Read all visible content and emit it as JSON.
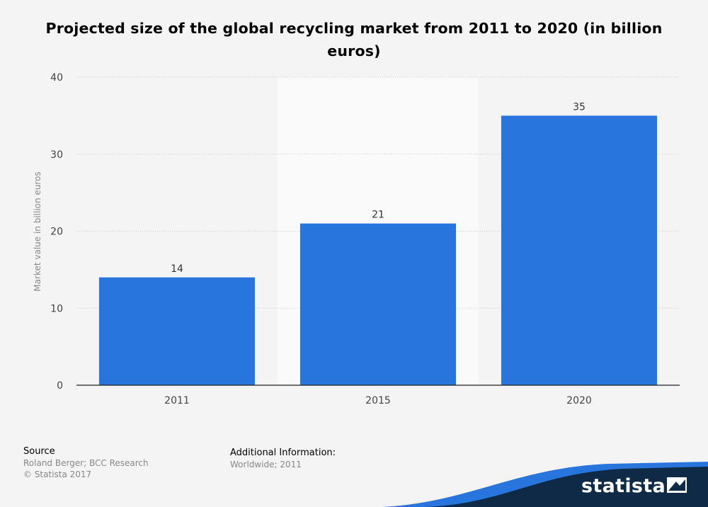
{
  "chart_data": {
    "type": "bar",
    "title": "Projected size of the global recycling market from 2011 to 2020 (in billion euros)",
    "categories": [
      "2011",
      "2015",
      "2020"
    ],
    "values": [
      14,
      21,
      35
    ],
    "data_labels": [
      "14",
      "21",
      "35"
    ],
    "xlabel": "",
    "ylabel": "Market value in billion euros",
    "ylim": [
      0,
      40
    ],
    "yticks": [
      0,
      10,
      20,
      30,
      40
    ],
    "ytick_labels": [
      "0",
      "10",
      "20",
      "30",
      "40"
    ],
    "highlighted_category": "2015",
    "bar_color": "#2876dd",
    "grid": true
  },
  "footer": {
    "source_heading": "Source",
    "source_text": "Roland Berger; BCC Research",
    "copyright": "© Statista 2017",
    "info_heading": "Additional Information:",
    "info_text": "Worldwide; 2011"
  },
  "brand": {
    "name": "statista",
    "dark_color": "#0e2a47",
    "accent_color": "#2876dd"
  }
}
